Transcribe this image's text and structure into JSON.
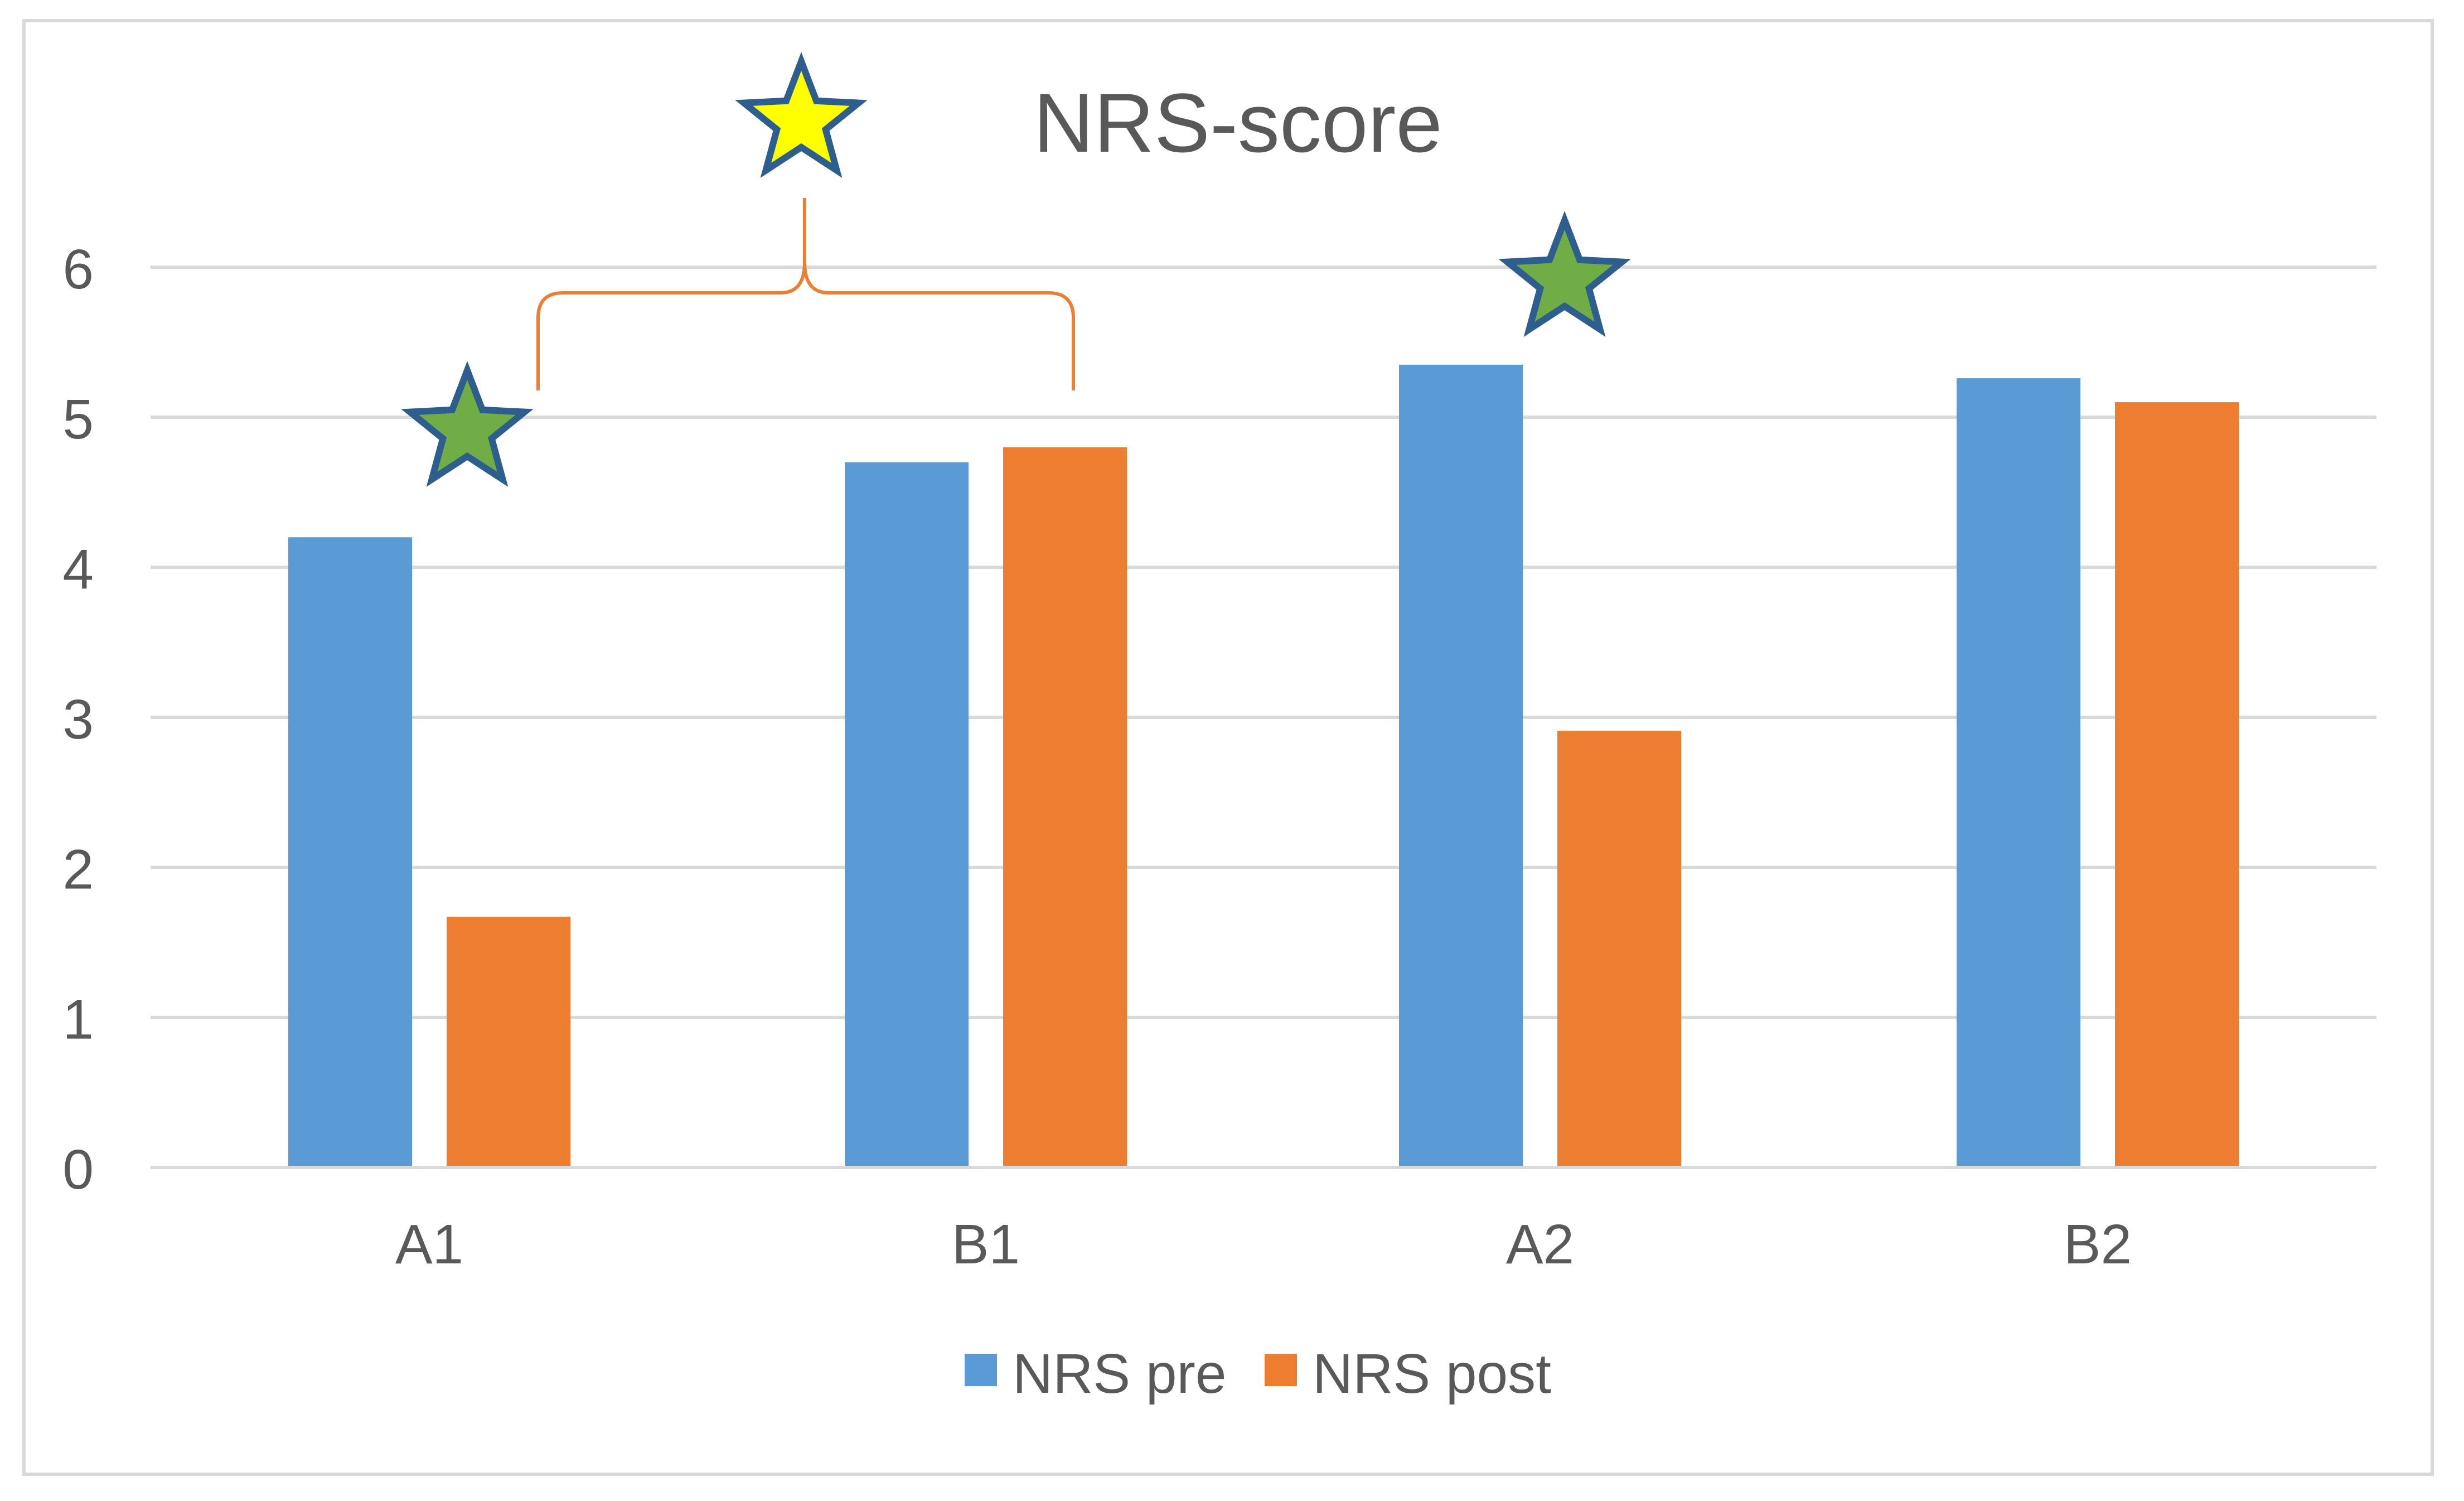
{
  "chart_data": {
    "type": "bar",
    "title": "NRS-score",
    "xlabel": "",
    "ylabel": "",
    "categories": [
      "A1",
      "B1",
      "A2",
      "B2"
    ],
    "series": [
      {
        "name": "NRS pre",
        "color": "#5b9bd5",
        "values": [
          4.2,
          4.7,
          5.35,
          5.26
        ]
      },
      {
        "name": "NRS post",
        "color": "#ed7d31",
        "values": [
          1.67,
          4.8,
          2.91,
          5.1
        ]
      }
    ],
    "ylim": [
      0,
      6
    ],
    "yticks": [
      "0",
      "1",
      "2",
      "3",
      "4",
      "5",
      "6"
    ],
    "grid": true,
    "legend_position": "bottom",
    "annotations": [
      {
        "type": "star",
        "color": "#70ad47",
        "near": "A1"
      },
      {
        "type": "star",
        "color": "#70ad47",
        "near": "A2"
      },
      {
        "type": "star",
        "color": "#ffff00",
        "near": "A1-B1 bracket"
      },
      {
        "type": "bracket",
        "color": "#ed7d31",
        "from": "A1",
        "to": "B1"
      }
    ]
  }
}
